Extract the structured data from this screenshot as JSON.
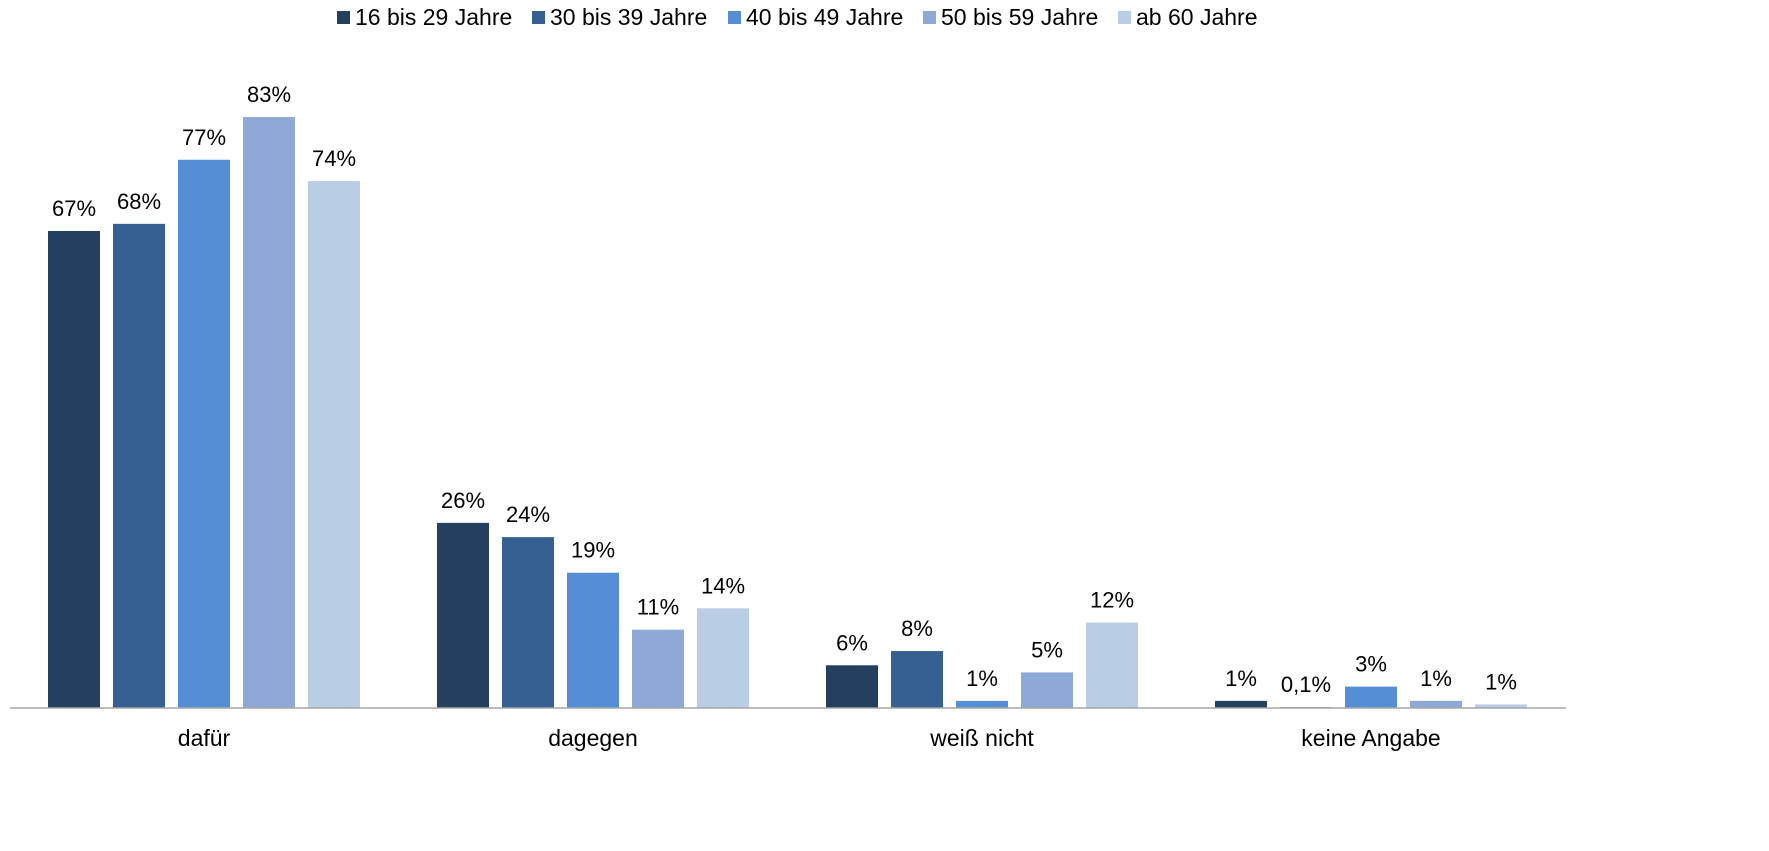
{
  "chart_data": {
    "type": "bar",
    "title": "",
    "xlabel": "",
    "ylabel": "",
    "ylim": [
      0,
      90
    ],
    "grid": false,
    "legend_position": "top",
    "categories": [
      "dafür",
      "dagegen",
      "weiß nicht",
      "keine Angabe"
    ],
    "series": [
      {
        "name": "16 bis 29 Jahre",
        "color": "#253f5f",
        "values": [
          67,
          26,
          6,
          1
        ],
        "labels": [
          "67%",
          "26%",
          "6%",
          "1%"
        ]
      },
      {
        "name": "30 bis 39 Jahre",
        "color": "#376092",
        "values": [
          68,
          24,
          8,
          0.1
        ],
        "labels": [
          "68%",
          "24%",
          "8%",
          "0,1%"
        ]
      },
      {
        "name": "40 bis 49 Jahre",
        "color": "#558ed5",
        "values": [
          77,
          19,
          1,
          3
        ],
        "labels": [
          "77%",
          "19%",
          "1%",
          "3%"
        ]
      },
      {
        "name": "50 bis 59 Jahre",
        "color": "#8ea9d6",
        "values": [
          83,
          11,
          5,
          1
        ],
        "labels": [
          "83%",
          "11%",
          "5%",
          "1%"
        ]
      },
      {
        "name": "ab 60 Jahre",
        "color": "#b9cde5",
        "values": [
          74,
          14,
          12,
          0.5
        ],
        "labels": [
          "74%",
          "14%",
          "12%",
          "1%"
        ]
      }
    ]
  }
}
